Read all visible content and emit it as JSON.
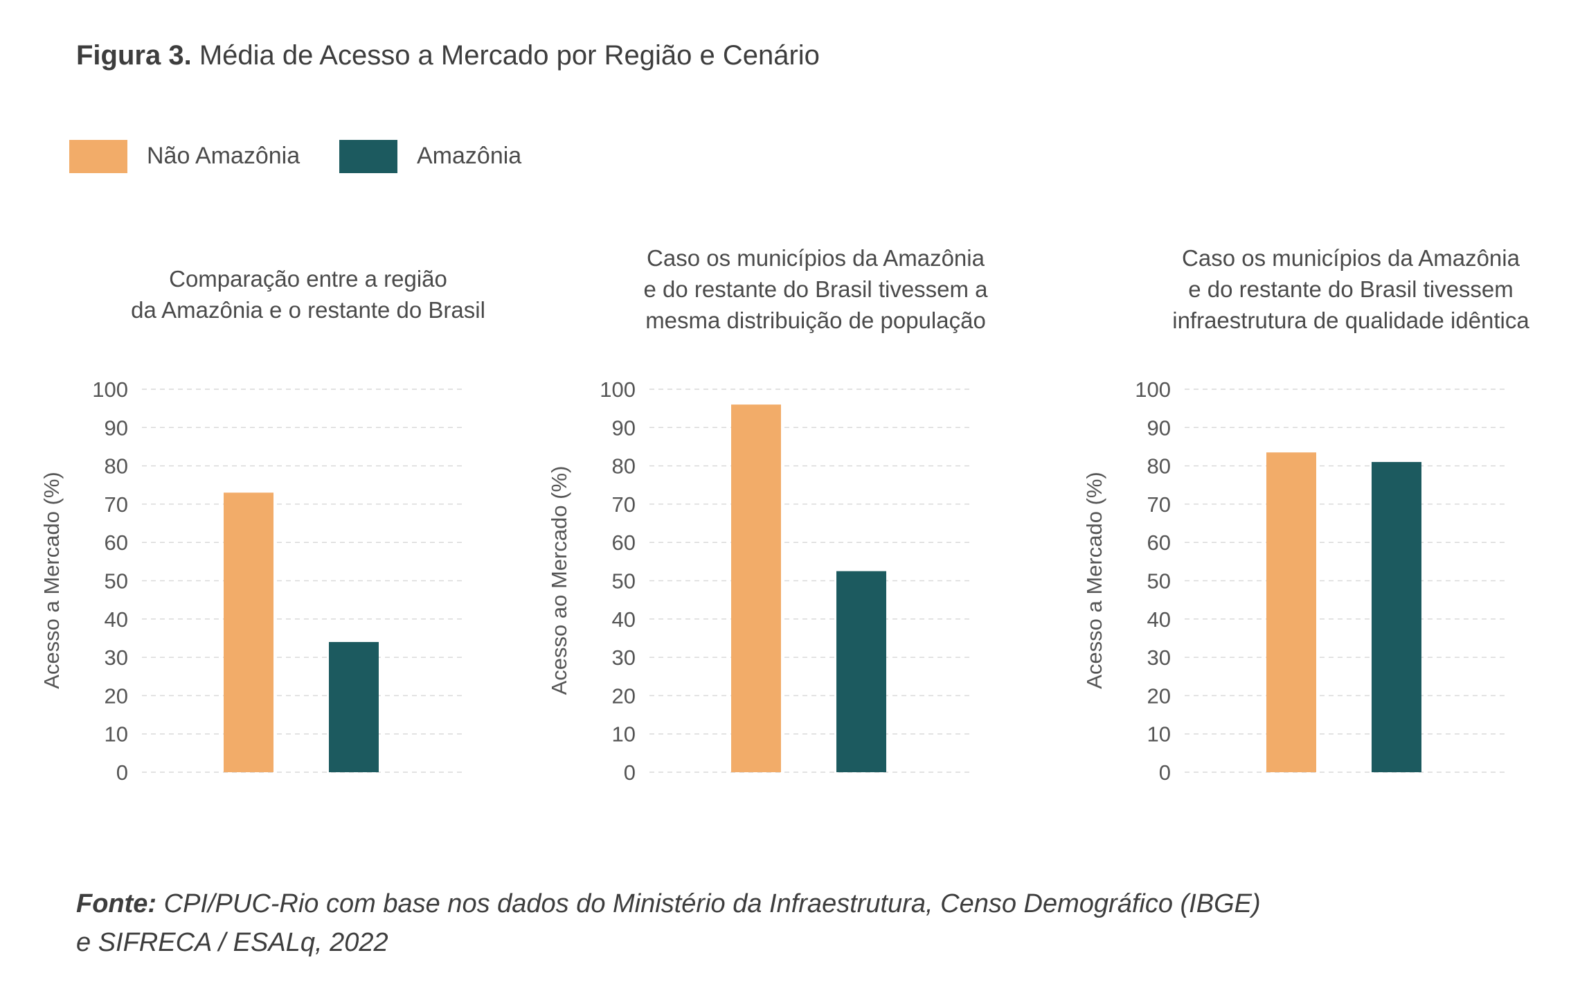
{
  "figure": {
    "title_lead": "Figura 3.",
    "title_rest": " Média de Acesso a Mercado por Região e Cenário"
  },
  "legend": [
    {
      "label": "Não Amazônia",
      "color": "#f2ac69"
    },
    {
      "label": "Amazônia",
      "color": "#1c5a5f"
    }
  ],
  "source": {
    "lead": "Fonte:",
    "line1": " CPI/PUC-Rio com base nos dados do Ministério da Infraestrutura, Censo Demográfico (IBGE)",
    "line2": "e SIFRECA / ESALq, 2022"
  },
  "chart_data": [
    {
      "type": "bar",
      "title_lines": [
        "Comparação entre a região",
        "da Amazônia e o restante do Brasil"
      ],
      "ylabel": "Acesso a Mercado (%)",
      "ylim": [
        0,
        100
      ],
      "yticks": [
        0,
        10,
        20,
        30,
        40,
        50,
        60,
        70,
        80,
        90,
        100
      ],
      "grid": true,
      "series": [
        {
          "name": "Não Amazônia",
          "values": [
            73
          ]
        },
        {
          "name": "Amazônia",
          "values": [
            34
          ]
        }
      ]
    },
    {
      "type": "bar",
      "title_lines": [
        "Caso os municípios da Amazônia",
        "e do restante do Brasil tivessem a",
        "mesma distribuição de população"
      ],
      "ylabel": "Acesso ao Mercado (%)",
      "ylim": [
        0,
        100
      ],
      "yticks": [
        0,
        10,
        20,
        30,
        40,
        50,
        60,
        70,
        80,
        90,
        100
      ],
      "grid": true,
      "series": [
        {
          "name": "Não Amazônia",
          "values": [
            96
          ]
        },
        {
          "name": "Amazônia",
          "values": [
            52.5
          ]
        }
      ]
    },
    {
      "type": "bar",
      "title_lines": [
        "Caso os municípios da Amazônia",
        "e do restante do Brasil tivessem",
        "infraestrutura de qualidade idêntica"
      ],
      "ylabel": "Acesso a Mercado (%)",
      "ylim": [
        0,
        100
      ],
      "yticks": [
        0,
        10,
        20,
        30,
        40,
        50,
        60,
        70,
        80,
        90,
        100
      ],
      "grid": true,
      "series": [
        {
          "name": "Não Amazônia",
          "values": [
            83.5
          ]
        },
        {
          "name": "Amazônia",
          "values": [
            81
          ]
        }
      ]
    }
  ]
}
